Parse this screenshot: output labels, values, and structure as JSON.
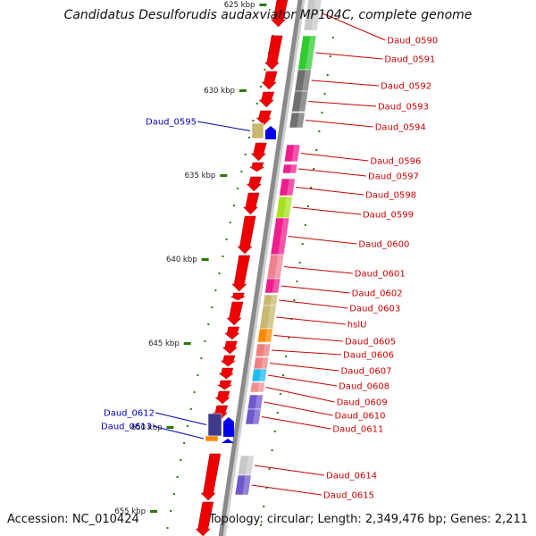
{
  "title": "Candidatus Desulforudis audaxviator MP104C, complete genome",
  "footer": {
    "accession": "Accession: NC_010424",
    "topology": "Topology: circular; Length: 2,349,476 bp; Genes: 2,211"
  },
  "colors": {
    "backbone": "#8a8a8a",
    "cds_arrow": "#ee0000",
    "reverse_strand_arrow": "#0000ee",
    "forward_label": "#cc0000",
    "reverse_label": "#0000bb",
    "tick": "#2a7a0a"
  },
  "scale": {
    "unit": "kbp",
    "ticks": [
      {
        "label": "625 kbp"
      },
      {
        "label": "630 kbp"
      },
      {
        "label": "635 kbp"
      },
      {
        "label": "640 kbp"
      },
      {
        "label": "645 kbp"
      },
      {
        "label": "650 kbp"
      },
      {
        "label": "655 kbp"
      }
    ]
  },
  "forward_genes": [
    {
      "label": "Daud_0590",
      "color": "#c8c8c8"
    },
    {
      "label": "Daud_0591",
      "color": "#2ecc2e"
    },
    {
      "label": "Daud_0592",
      "color": "#707070"
    },
    {
      "label": "Daud_0593",
      "color": "#707070"
    },
    {
      "label": "Daud_0594",
      "color": "#707070"
    },
    {
      "label": "Daud_0596",
      "color": "#ee1c8c"
    },
    {
      "label": "Daud_0597",
      "color": "#ee1c8c"
    },
    {
      "label": "Daud_0598",
      "color": "#ee1c8c"
    },
    {
      "label": "Daud_0599",
      "color": "#a8e020"
    },
    {
      "label": "Daud_0600",
      "color": "#ee1c8c"
    },
    {
      "label": "Daud_0601",
      "color": "#ee8090"
    },
    {
      "label": "Daud_0602",
      "color": "#ee1c8c"
    },
    {
      "label": "Daud_0603",
      "color": "#c8b870"
    },
    {
      "label": "hslU",
      "color": "#c8b870"
    },
    {
      "label": "Daud_0605",
      "color": "#ff8800"
    },
    {
      "label": "Daud_0606",
      "color": "#ee8080"
    },
    {
      "label": "Daud_0607",
      "color": "#ee8080"
    },
    {
      "label": "Daud_0608",
      "color": "#22bbee"
    },
    {
      "label": "Daud_0609",
      "color": "#f09090"
    },
    {
      "label": "Daud_0610",
      "color": "#7058cc"
    },
    {
      "label": "Daud_0611",
      "color": "#7058cc"
    },
    {
      "label": "Daud_0614",
      "color": "#c8c8c8"
    },
    {
      "label": "Daud_0615",
      "color": "#7058cc"
    }
  ],
  "reverse_genes": [
    {
      "label": "Daud_0595",
      "color": "#c8b870"
    },
    {
      "label": "Daud_0612",
      "color": "#403a8a"
    },
    {
      "label": "Daud_0613",
      "color": "#ff8800"
    }
  ]
}
